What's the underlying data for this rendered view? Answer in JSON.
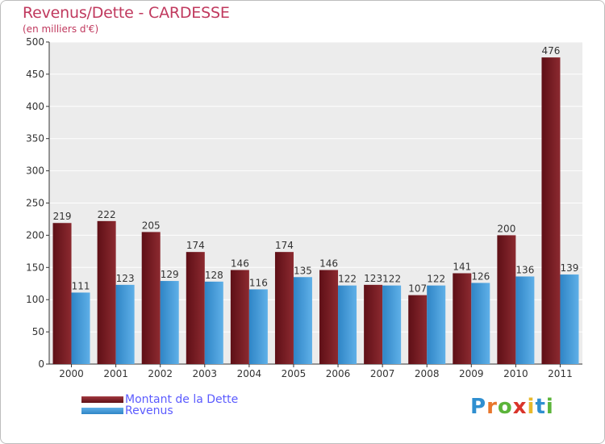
{
  "title": "Revenus/Dette - CARDESSE",
  "subtitle": "(en milliers d'€)",
  "chart_data": {
    "type": "bar",
    "categories": [
      "2000",
      "2001",
      "2002",
      "2003",
      "2004",
      "2005",
      "2006",
      "2007",
      "2008",
      "2009",
      "2010",
      "2011"
    ],
    "series": [
      {
        "name": "Montant de la Dette",
        "values": [
          219,
          222,
          205,
          174,
          146,
          174,
          146,
          123,
          107,
          141,
          200,
          476
        ],
        "color": "#7a1e24"
      },
      {
        "name": "Revenus",
        "values": [
          111,
          123,
          129,
          128,
          116,
          135,
          122,
          122,
          122,
          126,
          136,
          139
        ],
        "color": "#3d97d6"
      }
    ],
    "ylim": [
      0,
      500
    ],
    "yticks": [
      0,
      50,
      100,
      150,
      200,
      250,
      300,
      350,
      400,
      450,
      500
    ],
    "grid": true,
    "legend": "bottom-left"
  },
  "legend": {
    "debt_label": "Montant de la Dette",
    "revenue_label": "Revenus"
  },
  "logo": {
    "letters": [
      "P",
      "r",
      "o",
      "x",
      "i",
      "t",
      "i"
    ],
    "colors": [
      "#2f8fd0",
      "#e8762c",
      "#5bb43a",
      "#d9342b",
      "#e8b92c",
      "#2f8fd0",
      "#5bb43a"
    ]
  }
}
